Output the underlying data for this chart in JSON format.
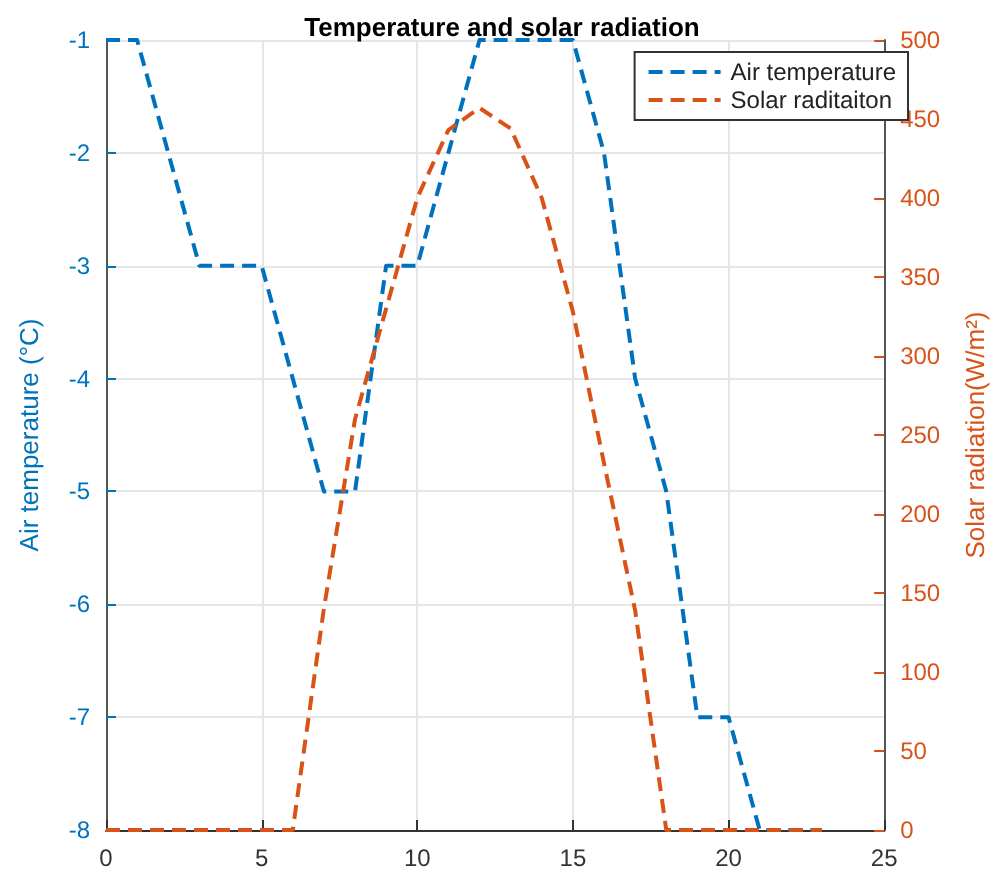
{
  "chart_data": {
    "type": "line",
    "title": "Temperature and solar radiation",
    "ylabel": "Air temperature (°C)",
    "y2label": "Solar radiation(W/m²)",
    "x": [
      0,
      1,
      2,
      3,
      4,
      5,
      6,
      7,
      8,
      9,
      10,
      11,
      12,
      13,
      14,
      15,
      16,
      17,
      18,
      19,
      20,
      21,
      22,
      23
    ],
    "series": [
      {
        "name": "Air temperature",
        "color": "#0072bd",
        "line_style": "dashed",
        "values": [
          -1,
          -1,
          -2,
          -3,
          -3,
          -3,
          -4,
          -5,
          -5,
          -3,
          -3,
          -2,
          -1,
          -1,
          -1,
          -1,
          -2,
          -4,
          -5,
          -7,
          -7,
          -8,
          -8,
          -8
        ]
      },
      {
        "name": "Solar raditaiton",
        "color": "#d95319",
        "axis": "y2",
        "line_style": "dashed",
        "values": [
          0,
          0,
          0,
          0,
          0,
          0,
          0,
          140,
          260,
          330,
          400,
          443,
          457,
          444,
          400,
          328,
          232,
          139,
          0,
          0,
          0,
          0,
          0,
          0
        ]
      }
    ],
    "xlim": [
      0,
      25
    ],
    "xticks": [
      0,
      5,
      10,
      15,
      20,
      25
    ],
    "ylim": [
      -8,
      -1
    ],
    "yticks": [
      -8,
      -7,
      -6,
      -5,
      -4,
      -3,
      -2,
      -1
    ],
    "y2lim": [
      0,
      500
    ],
    "y2ticks": [
      0,
      50,
      100,
      150,
      200,
      250,
      300,
      350,
      400,
      450,
      500
    ],
    "grid": true,
    "legend": "top right",
    "marker": "none"
  }
}
